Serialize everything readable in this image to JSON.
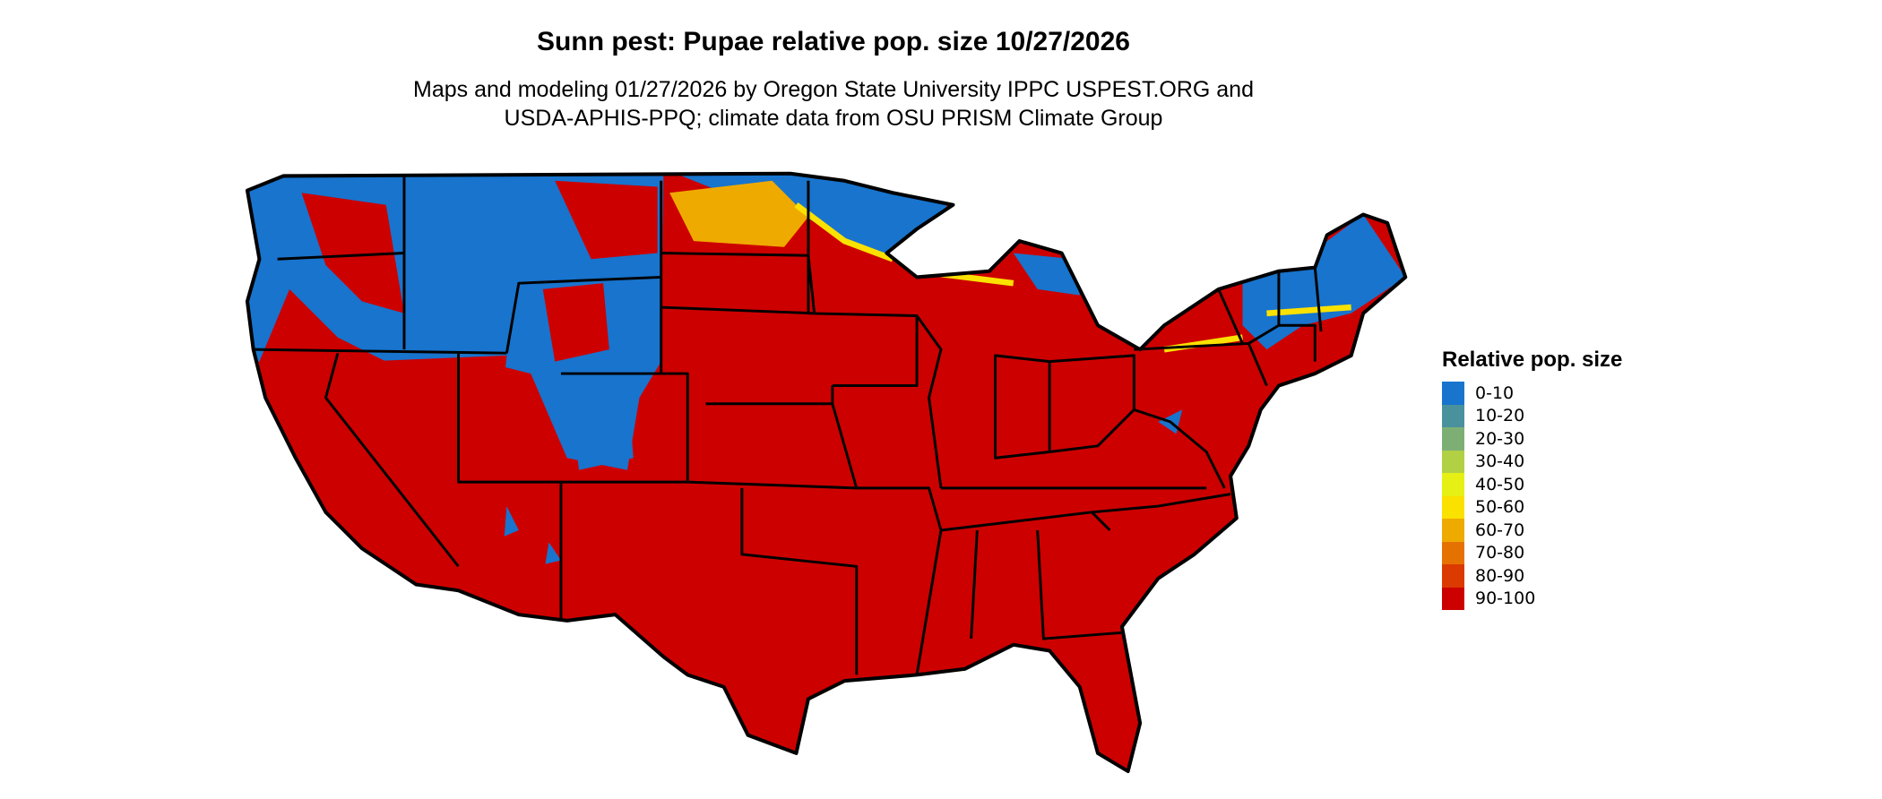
{
  "title": "Sunn pest: Pupae relative pop. size 10/27/2026",
  "subtitle_line1": "Maps and modeling 01/27/2026 by Oregon State University IPPC USPEST.ORG and",
  "subtitle_line2": "USDA-APHIS-PPQ; climate data from OSU PRISM Climate Group",
  "map": {
    "region": "Contiguous United States",
    "dominant_class": "90-100",
    "low_classes_region": "northern and western mountain areas"
  },
  "legend": {
    "title": "Relative pop. size",
    "items": [
      {
        "label": "0-10",
        "color": "#1874cd"
      },
      {
        "label": "10-20",
        "color": "#4a919e"
      },
      {
        "label": "20-30",
        "color": "#7daf75"
      },
      {
        "label": "30-40",
        "color": "#b2d044"
      },
      {
        "label": "40-50",
        "color": "#e6f014"
      },
      {
        "label": "50-60",
        "color": "#fae100"
      },
      {
        "label": "60-70",
        "color": "#efaa00"
      },
      {
        "label": "70-80",
        "color": "#e57200"
      },
      {
        "label": "80-90",
        "color": "#db3a00"
      },
      {
        "label": "90-100",
        "color": "#cd0000"
      }
    ]
  }
}
